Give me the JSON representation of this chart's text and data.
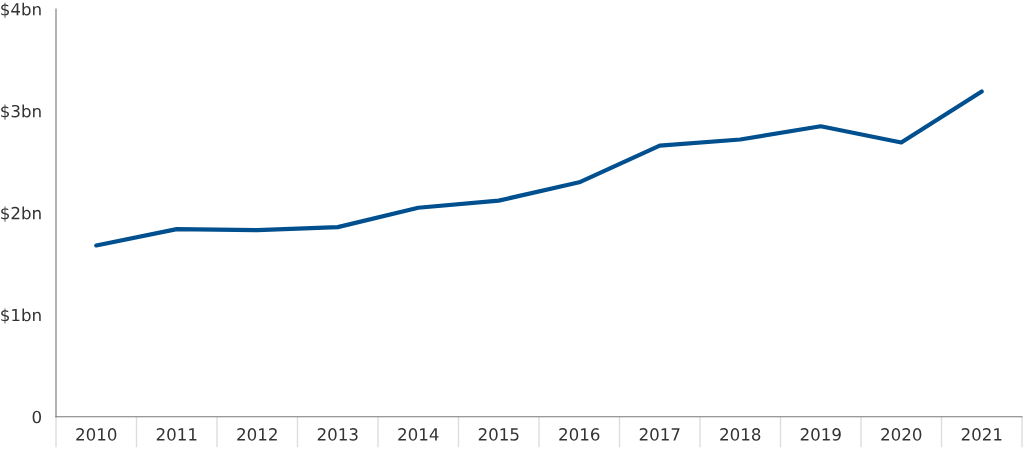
{
  "chart_data": {
    "type": "line",
    "categories": [
      "2010",
      "2011",
      "2012",
      "2013",
      "2014",
      "2015",
      "2016",
      "2017",
      "2018",
      "2019",
      "2020",
      "2021"
    ],
    "series": [
      {
        "color": "#00508f",
        "values": [
          1.68,
          1.84,
          1.83,
          1.86,
          2.05,
          2.12,
          2.3,
          2.66,
          2.72,
          2.85,
          2.69,
          3.19
        ]
      }
    ],
    "ylim": [
      0,
      4
    ],
    "yticks": [
      {
        "value": 0,
        "label": "0"
      },
      {
        "value": 1,
        "label": "$1bn"
      },
      {
        "value": 2,
        "label": "$2bn"
      },
      {
        "value": 3,
        "label": "$3bn"
      },
      {
        "value": 4,
        "label": "$4bn"
      }
    ],
    "grid": false,
    "marker": "none",
    "line_style": "solid"
  }
}
